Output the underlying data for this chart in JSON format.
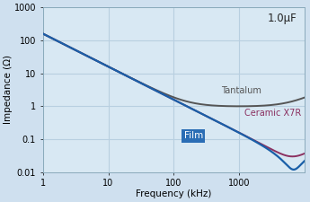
{
  "title_annotation": "1.0μF",
  "xlabel": "Frequency (kHz)",
  "ylabel": "Impedance (Ω)",
  "xlim": [
    1,
    10000
  ],
  "ylim": [
    0.01,
    1000
  ],
  "background_color": "#cfe0ef",
  "plot_background": "#d8e8f3",
  "grid_color": "#b8cfe0",
  "tantalum_color": "#555555",
  "ceramic_color": "#8b3060",
  "film_color": "#1a5fa8",
  "film_label": "Film",
  "film_label_bg": "#2a6db5",
  "film_label_color": "#ffffff",
  "tantalum_label": "Tantalum",
  "ceramic_label": "Ceramic X7R",
  "figsize": [
    3.45,
    2.25
  ],
  "dpi": 100
}
